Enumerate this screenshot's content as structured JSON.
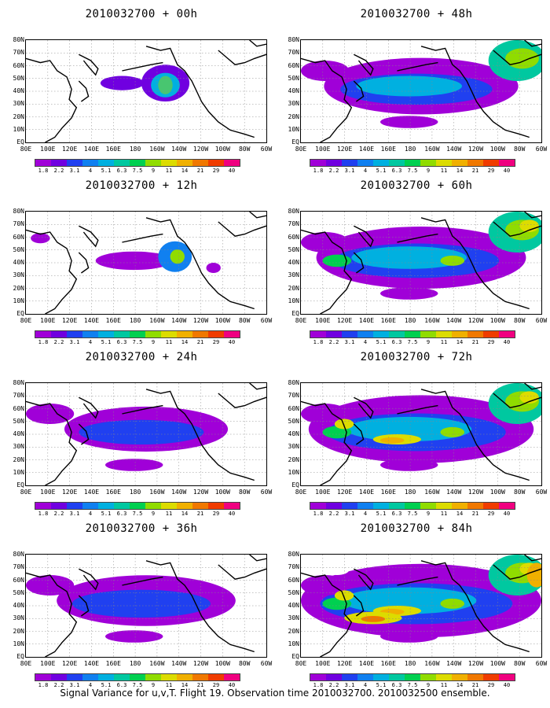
{
  "panels": [
    {
      "title": "2010032700 + 00h",
      "level": 0
    },
    {
      "title": "2010032700 + 48h",
      "level": 4
    },
    {
      "title": "2010032700 + 12h",
      "level": 1
    },
    {
      "title": "2010032700 + 60h",
      "level": 5
    },
    {
      "title": "2010032700 + 24h",
      "level": 2
    },
    {
      "title": "2010032700 + 72h",
      "level": 6
    },
    {
      "title": "2010032700 + 36h",
      "level": 3
    },
    {
      "title": "2010032700 + 84h",
      "level": 7
    }
  ],
  "lat_labels": [
    "80N",
    "70N",
    "60N",
    "50N",
    "40N",
    "30N",
    "20N",
    "10N",
    "EQ"
  ],
  "lon_labels": [
    "80E",
    "100E",
    "120E",
    "140E",
    "160E",
    "180",
    "160W",
    "140W",
    "120W",
    "100W",
    "80W",
    "60W"
  ],
  "colorbar": {
    "ticks": [
      "1.8",
      "2.2",
      "3.1",
      "4",
      "5.1",
      "6.3",
      "7.5",
      "9",
      "11",
      "14",
      "21",
      "29",
      "40"
    ],
    "colors": [
      "#a000d8",
      "#7000e0",
      "#2040f0",
      "#1080f0",
      "#00b0e0",
      "#00c8a0",
      "#00d050",
      "#90dc00",
      "#dcdc00",
      "#f0b000",
      "#f07800",
      "#f03c00",
      "#f00080"
    ]
  },
  "caption": "Signal Variance for u,v,T. Flight 19. Observation time 2010032700. 2010032500 ensemble."
}
